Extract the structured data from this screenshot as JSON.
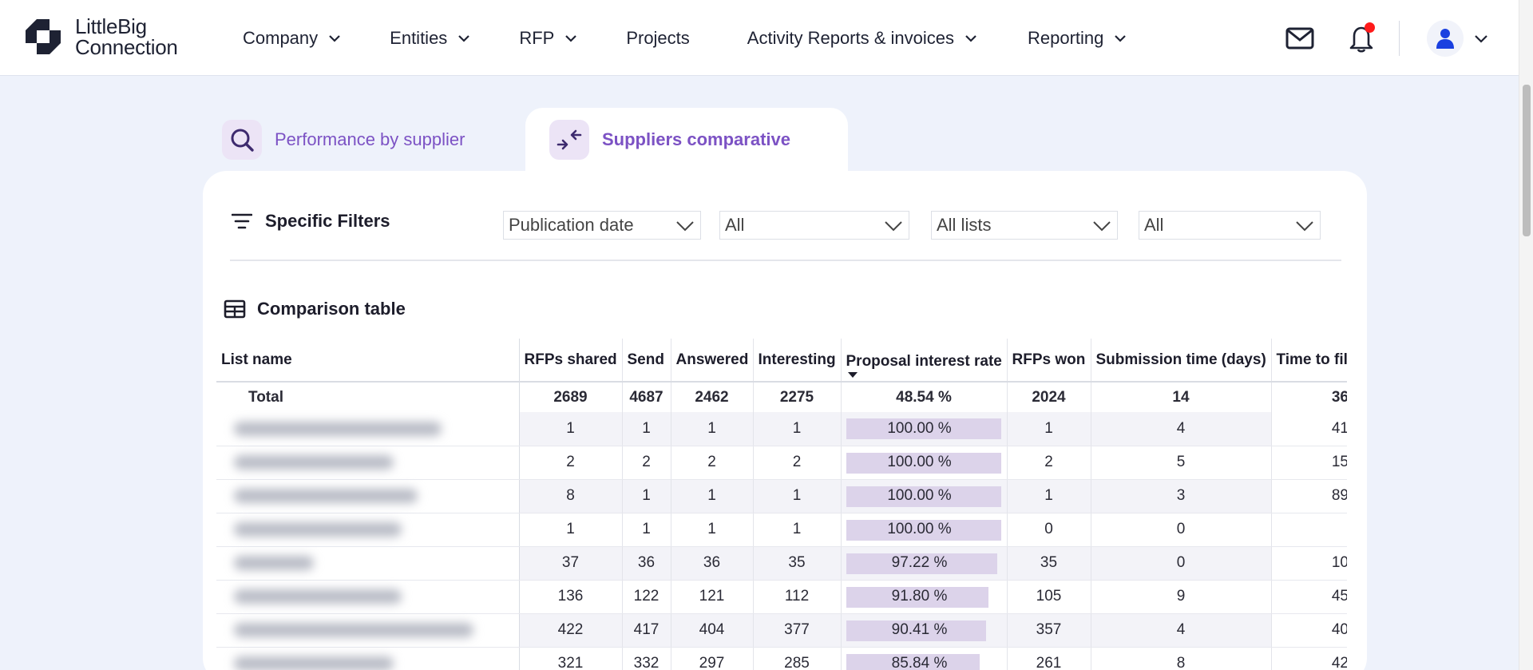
{
  "header": {
    "logo_line1": "LittleBig",
    "logo_line2": "Connection",
    "nav": [
      {
        "label": "Company",
        "has_dropdown": true
      },
      {
        "label": "Entities",
        "has_dropdown": true
      },
      {
        "label": "RFP",
        "has_dropdown": true
      },
      {
        "label": "Projects",
        "has_dropdown": false
      },
      {
        "label": "Activity Reports & invoices",
        "has_dropdown": true
      },
      {
        "label": "Reporting",
        "has_dropdown": true
      }
    ],
    "icons": [
      "mail-icon",
      "bell-icon",
      "user-icon"
    ],
    "notification_dot_color": "#ff1a1a",
    "avatar_color": "#1a40e0"
  },
  "tabs": [
    {
      "label": "Performance by supplier",
      "icon": "search-icon",
      "active": false
    },
    {
      "label": "Suppliers comparative",
      "icon": "compare-arrows-icon",
      "active": true
    }
  ],
  "filters": {
    "title": "Specific Filters",
    "selects": [
      "Publication date",
      "All",
      "All lists",
      "All"
    ]
  },
  "table": {
    "title": "Comparison table",
    "columns": [
      "List name",
      "RFPs shared",
      "Send",
      "Answered",
      "Interesting",
      "Proposal interest rate",
      "RFPs won",
      "Submission time (days)",
      "Time to fil"
    ],
    "sorted_column": "Proposal interest rate",
    "total": {
      "name": "Total",
      "rfps_shared": "2689",
      "send": "4687",
      "answered": "2462",
      "interesting": "2275",
      "rate": "48.54 %",
      "won": "2024",
      "submission": "14",
      "time_to_fill": "36"
    },
    "rows": [
      {
        "rfps_shared": "1",
        "send": "1",
        "answered": "1",
        "interesting": "1",
        "rate": "100.00 %",
        "rate_value": 100.0,
        "won": "1",
        "submission": "4",
        "time_to_fill": "41"
      },
      {
        "rfps_shared": "2",
        "send": "2",
        "answered": "2",
        "interesting": "2",
        "rate": "100.00 %",
        "rate_value": 100.0,
        "won": "2",
        "submission": "5",
        "time_to_fill": "15"
      },
      {
        "rfps_shared": "8",
        "send": "1",
        "answered": "1",
        "interesting": "1",
        "rate": "100.00 %",
        "rate_value": 100.0,
        "won": "1",
        "submission": "3",
        "time_to_fill": "89"
      },
      {
        "rfps_shared": "1",
        "send": "1",
        "answered": "1",
        "interesting": "1",
        "rate": "100.00 %",
        "rate_value": 100.0,
        "won": "0",
        "submission": "0",
        "time_to_fill": ""
      },
      {
        "rfps_shared": "37",
        "send": "36",
        "answered": "36",
        "interesting": "35",
        "rate": "97.22 %",
        "rate_value": 97.22,
        "won": "35",
        "submission": "0",
        "time_to_fill": "10"
      },
      {
        "rfps_shared": "136",
        "send": "122",
        "answered": "121",
        "interesting": "112",
        "rate": "91.80 %",
        "rate_value": 91.8,
        "won": "105",
        "submission": "9",
        "time_to_fill": "45"
      },
      {
        "rfps_shared": "422",
        "send": "417",
        "answered": "404",
        "interesting": "377",
        "rate": "90.41 %",
        "rate_value": 90.41,
        "won": "357",
        "submission": "4",
        "time_to_fill": "40"
      },
      {
        "rfps_shared": "321",
        "send": "332",
        "answered": "297",
        "interesting": "285",
        "rate": "85.84 %",
        "rate_value": 85.84,
        "won": "261",
        "submission": "8",
        "time_to_fill": "42"
      }
    ]
  },
  "colors": {
    "accent_purple": "#7c52c4",
    "rate_bar": "#dcd3ea",
    "page_bg": "#eef2fb"
  }
}
